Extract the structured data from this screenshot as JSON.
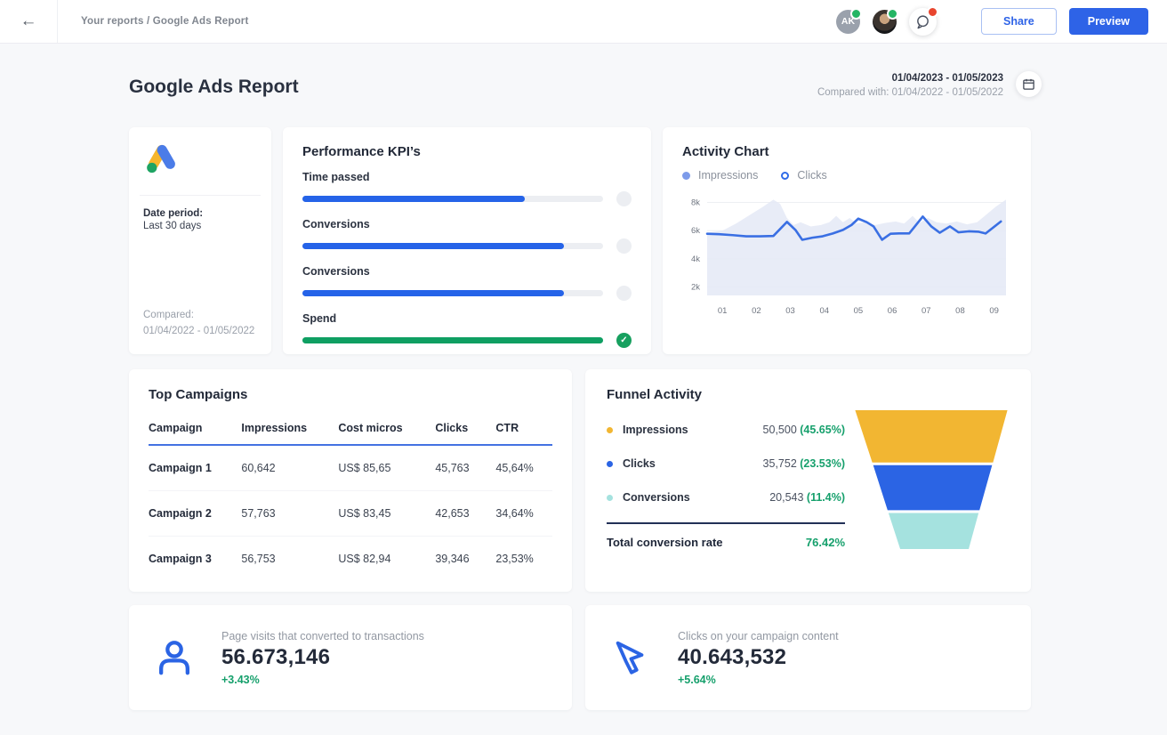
{
  "topbar": {
    "breadcrumb": "Your reports / Google Ads Report",
    "avatar_initials": "AK",
    "share_label": "Share",
    "preview_label": "Preview"
  },
  "header": {
    "title": "Google Ads Report",
    "date_range": "01/04/2023 - 01/05/2023",
    "compared_with": "Compared with: 01/04/2022 - 01/05/2022"
  },
  "source_card": {
    "date_period_label": "Date period:",
    "date_period_value": "Last 30 days",
    "compared_label": "Compared:",
    "compared_value": "01/04/2022 - 01/05/2022"
  },
  "kpi_card": {
    "title": "Performance KPI’s",
    "items": [
      {
        "label": "Time passed",
        "percent": 74,
        "color": "#2563e8",
        "done": false
      },
      {
        "label": "Conversions",
        "percent": 87,
        "color": "#2563e8",
        "done": false
      },
      {
        "label": "Conversions",
        "percent": 87,
        "color": "#2563e8",
        "done": false
      },
      {
        "label": "Spend",
        "percent": 100,
        "color": "#0f9f62",
        "done": true
      }
    ],
    "done_glyph": "✓"
  },
  "activity_card": {
    "title": "Activity Chart",
    "legend": [
      {
        "label": "Impressions",
        "color": "#7d9bea",
        "style": "filled"
      },
      {
        "label": "Clicks",
        "color": "#2f6be8",
        "style": "ring"
      }
    ]
  },
  "chart_data": [
    {
      "type": "area",
      "title": "Activity Chart",
      "x_ticks": [
        "01",
        "02",
        "03",
        "04",
        "05",
        "06",
        "07",
        "08",
        "09"
      ],
      "y_ticks": [
        "8k",
        "6k",
        "4k",
        "2k"
      ],
      "y_gridlines": [
        8,
        6,
        4,
        2
      ],
      "xlim": [
        0.55,
        9.35
      ],
      "ylim": [
        1.4,
        8.35
      ],
      "unit": "k",
      "series": [
        {
          "name": "Impressions",
          "type": "area",
          "color": "#e4e9f6",
          "points": [
            [
              0.55,
              5.85
            ],
            [
              1.0,
              6.0
            ],
            [
              1.4,
              6.5
            ],
            [
              1.8,
              7.1
            ],
            [
              2.2,
              7.7
            ],
            [
              2.5,
              8.2
            ],
            [
              2.7,
              7.9
            ],
            [
              2.9,
              6.9
            ],
            [
              3.1,
              6.4
            ],
            [
              3.3,
              6.6
            ],
            [
              3.6,
              6.3
            ],
            [
              3.9,
              6.4
            ],
            [
              4.15,
              6.6
            ],
            [
              4.35,
              7.05
            ],
            [
              4.55,
              6.6
            ],
            [
              4.75,
              6.9
            ],
            [
              4.95,
              6.5
            ],
            [
              5.2,
              6.6
            ],
            [
              5.5,
              6.4
            ],
            [
              5.8,
              6.55
            ],
            [
              6.1,
              6.65
            ],
            [
              6.35,
              6.5
            ],
            [
              6.6,
              7.05
            ],
            [
              6.8,
              6.55
            ],
            [
              7.05,
              6.9
            ],
            [
              7.3,
              6.6
            ],
            [
              7.6,
              6.5
            ],
            [
              7.9,
              6.65
            ],
            [
              8.2,
              6.45
            ],
            [
              8.5,
              6.6
            ],
            [
              8.8,
              7.2
            ],
            [
              9.05,
              7.7
            ],
            [
              9.35,
              8.2
            ]
          ]
        },
        {
          "name": "Clicks",
          "type": "line",
          "color": "#3a6fe3",
          "points": [
            [
              0.55,
              5.78
            ],
            [
              0.9,
              5.75
            ],
            [
              1.3,
              5.68
            ],
            [
              1.7,
              5.6
            ],
            [
              2.1,
              5.6
            ],
            [
              2.5,
              5.62
            ],
            [
              2.9,
              6.62
            ],
            [
              3.15,
              6.05
            ],
            [
              3.35,
              5.35
            ],
            [
              3.65,
              5.5
            ],
            [
              3.95,
              5.6
            ],
            [
              4.25,
              5.8
            ],
            [
              4.55,
              6.05
            ],
            [
              4.8,
              6.4
            ],
            [
              5.0,
              6.85
            ],
            [
              5.25,
              6.6
            ],
            [
              5.45,
              6.3
            ],
            [
              5.7,
              5.35
            ],
            [
              5.95,
              5.78
            ],
            [
              6.2,
              5.8
            ],
            [
              6.5,
              5.8
            ],
            [
              6.9,
              7.0
            ],
            [
              7.15,
              6.3
            ],
            [
              7.4,
              5.85
            ],
            [
              7.7,
              6.3
            ],
            [
              7.95,
              5.88
            ],
            [
              8.25,
              5.95
            ],
            [
              8.55,
              5.92
            ],
            [
              8.75,
              5.8
            ],
            [
              9.2,
              6.65
            ]
          ]
        }
      ]
    },
    {
      "type": "funnel",
      "title": "Funnel Activity",
      "stages": [
        {
          "label": "Impressions",
          "value": 50500,
          "percent": "45.65%",
          "color": "#f2b632"
        },
        {
          "label": "Clicks",
          "value": 35752,
          "percent": "23.53%",
          "color": "#2b64e4"
        },
        {
          "label": "Conversions",
          "value": 20543,
          "percent": "11.4%",
          "color": "#a5e2df"
        }
      ],
      "total_conversion_rate": "76.42%"
    }
  ],
  "campaigns_card": {
    "title": "Top Campaigns",
    "columns": [
      "Campaign",
      "Impressions",
      "Cost micros",
      "Clicks",
      "CTR"
    ],
    "rows": [
      [
        "Campaign 1",
        "60,642",
        "US$ 85,65",
        "45,763",
        "45,64%"
      ],
      [
        "Campaign 2",
        "57,763",
        "US$ 83,45",
        "42,653",
        "34,64%"
      ],
      [
        "Campaign 3",
        "56,753",
        "US$ 82,94",
        "39,346",
        "23,53%"
      ]
    ]
  },
  "funnel_card": {
    "title": "Funnel Activity",
    "rows": [
      {
        "label": "Impressions",
        "value": "50,500",
        "percent": "(45.65%)",
        "dot": "#f2b632"
      },
      {
        "label": "Clicks",
        "value": "35,752",
        "percent": "(23.53%)",
        "dot": "#2b64e4"
      },
      {
        "label": "Conversions",
        "value": "20,543",
        "percent": "(11.4%)",
        "dot": "#a5e2df"
      }
    ],
    "total_label": "Total conversion rate",
    "total_value": "76.42%"
  },
  "stat_cards": [
    {
      "label": "Page visits that converted to transactions",
      "value": "56.673,146",
      "delta": "+3.43%",
      "icon": "person-icon"
    },
    {
      "label": "Clicks on your campaign content",
      "value": "40.643,532",
      "delta": "+5.64%",
      "icon": "cursor-icon"
    }
  ],
  "colors": {
    "accent_blue": "#2e63e7",
    "bar_blue": "#2563e8",
    "bar_green": "#0f9f62",
    "positive_green": "#16a06c",
    "page_bg": "#f7f8fa"
  }
}
